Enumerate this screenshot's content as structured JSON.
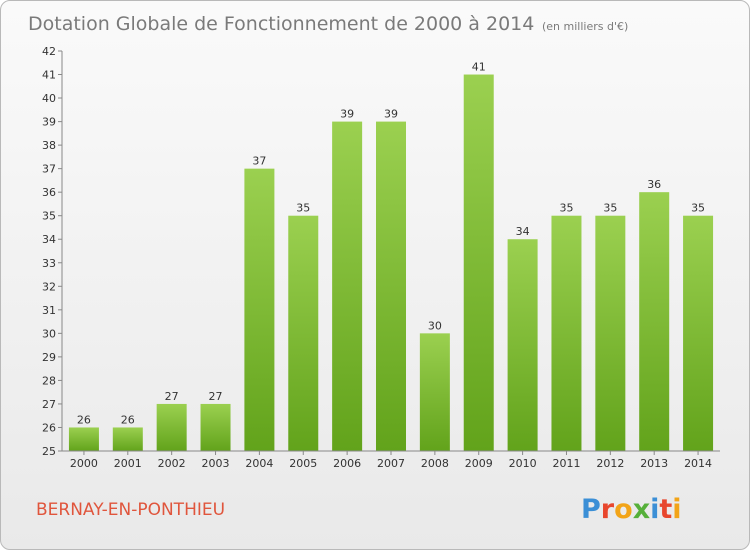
{
  "chart_data": {
    "type": "bar",
    "title": "Dotation Globale de Fonctionnement de 2000 à 2014",
    "subtitle": "(en milliers d'€)",
    "categories": [
      "2000",
      "2001",
      "2002",
      "2003",
      "2004",
      "2005",
      "2006",
      "2007",
      "2008",
      "2009",
      "2010",
      "2011",
      "2012",
      "2013",
      "2014"
    ],
    "values": [
      26,
      26,
      27,
      27,
      37,
      35,
      39,
      39,
      30,
      41,
      34,
      35,
      35,
      36,
      35
    ],
    "data_labels": [
      "26",
      "26",
      "27",
      "27",
      "37",
      "35",
      "39",
      "39",
      "30",
      "41",
      "34",
      "35",
      "35",
      "36",
      "35"
    ],
    "yticks": [
      "25",
      "26",
      "27",
      "28",
      "29",
      "30",
      "31",
      "32",
      "33",
      "34",
      "35",
      "36",
      "37",
      "38",
      "39",
      "40",
      "41",
      "42"
    ],
    "ylim": [
      25,
      42
    ],
    "xlabel": "",
    "ylabel": "",
    "bar_color_top": "#9bd050",
    "bar_color_bottom": "#62a31b",
    "grid": false,
    "legend": "none"
  },
  "footer": {
    "commune": "BERNAY-EN-PONTHIEU",
    "brand": [
      "P",
      "r",
      "o",
      "x",
      "i",
      "t",
      "i"
    ],
    "brand_colors": [
      "#3b8fd6",
      "#e8462d",
      "#f2a418",
      "#56b03a",
      "#3b8fd6",
      "#e8462d",
      "#f2a418"
    ]
  }
}
